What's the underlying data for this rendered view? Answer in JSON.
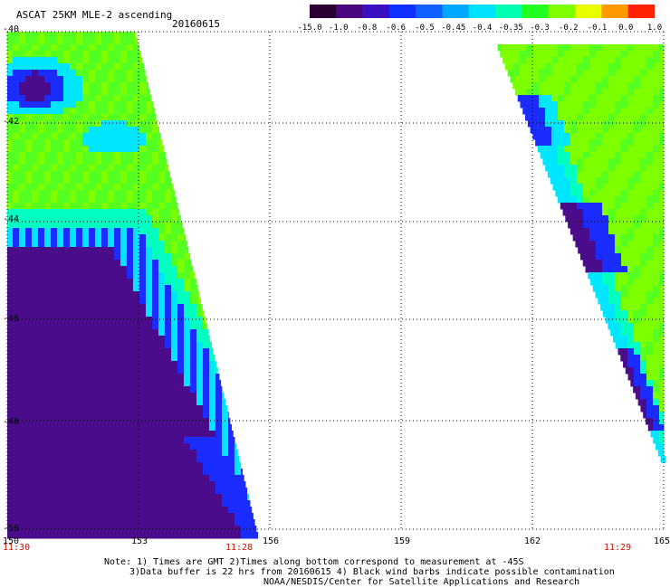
{
  "title": "ASCAT 25KM MLE-2 ascending",
  "date": "20160615",
  "colorbar": {
    "labels": [
      "-15.0",
      "-1.0",
      "-0.8",
      "-0.6",
      "-0.5",
      "-0.45",
      "-0.4",
      "-0.35",
      "-0.3",
      "-0.2",
      "-0.1",
      "0.0",
      "1.0"
    ],
    "colors": [
      "#2a0033",
      "#4a0880",
      "#3a10c0",
      "#1030ff",
      "#1060ff",
      "#00a8ff",
      "#00e0ff",
      "#00ffb0",
      "#20ff20",
      "#80ff00",
      "#e8ff00",
      "#ff9900",
      "#ff2200"
    ]
  },
  "map": {
    "lat_range": [
      -50,
      -40
    ],
    "lon_range": [
      150,
      165
    ],
    "x_ticks": [
      "150",
      "153",
      "156",
      "159",
      "162",
      "165"
    ],
    "y_ticks": [
      "-40",
      "-42",
      "-44",
      "-46",
      "-48",
      "-50"
    ],
    "times": [
      "11:30",
      "11:28",
      "11:29"
    ]
  },
  "notes": {
    "line1": "Note: 1) Times are GMT 2)Times along bottom correspond to measurement at -45S",
    "line2": "3)Data buffer is 22 hrs from 20160615 4) Black wind barbs indicate possible contamination",
    "line3": "NOAA/NESDIS/Center for Satellite Applications and Research"
  }
}
